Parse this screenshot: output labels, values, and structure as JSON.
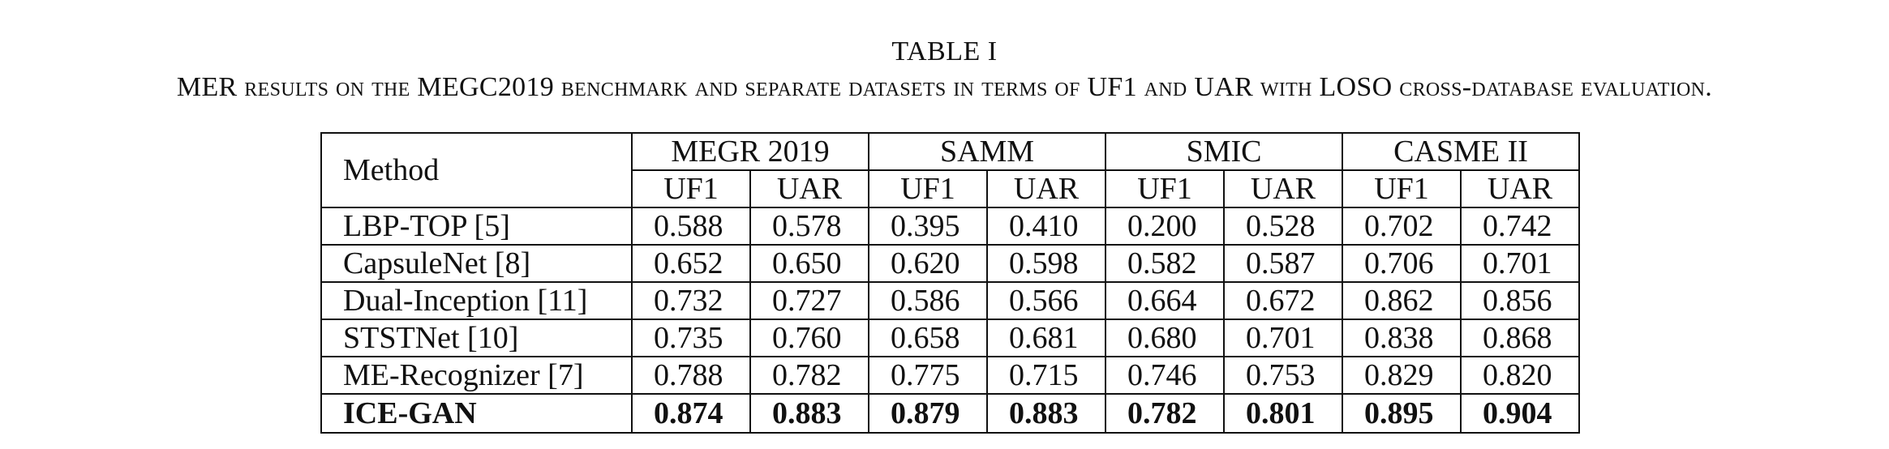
{
  "caption": {
    "title": "TABLE I",
    "text": "MER results on the MEGC2019 benchmark and separate datasets in terms of UF1 and UAR with LOSO cross-database evaluation."
  },
  "table": {
    "method_header": "Method",
    "groups": [
      "MEGR 2019",
      "SAMM",
      "SMIC",
      "CASME II"
    ],
    "subheaders": [
      "UF1",
      "UAR",
      "UF1",
      "UAR",
      "UF1",
      "UAR",
      "UF1",
      "UAR"
    ],
    "rows": [
      {
        "method": "LBP-TOP [5]",
        "values": [
          "0.588",
          "0.578",
          "0.395",
          "0.410",
          "0.200",
          "0.528",
          "0.702",
          "0.742"
        ]
      },
      {
        "method": "CapsuleNet [8]",
        "values": [
          "0.652",
          "0.650",
          "0.620",
          "0.598",
          "0.582",
          "0.587",
          "0.706",
          "0.701"
        ]
      },
      {
        "method": "Dual-Inception [11]",
        "values": [
          "0.732",
          "0.727",
          "0.586",
          "0.566",
          "0.664",
          "0.672",
          "0.862",
          "0.856"
        ]
      },
      {
        "method": "STSTNet [10]",
        "values": [
          "0.735",
          "0.760",
          "0.658",
          "0.681",
          "0.680",
          "0.701",
          "0.838",
          "0.868"
        ]
      },
      {
        "method": "ME-Recognizer [7]",
        "values": [
          "0.788",
          "0.782",
          "0.775",
          "0.715",
          "0.746",
          "0.753",
          "0.829",
          "0.820"
        ]
      },
      {
        "method": "ICE-GAN",
        "values": [
          "0.874",
          "0.883",
          "0.879",
          "0.883",
          "0.782",
          "0.801",
          "0.895",
          "0.904"
        ],
        "bold": true
      }
    ]
  }
}
